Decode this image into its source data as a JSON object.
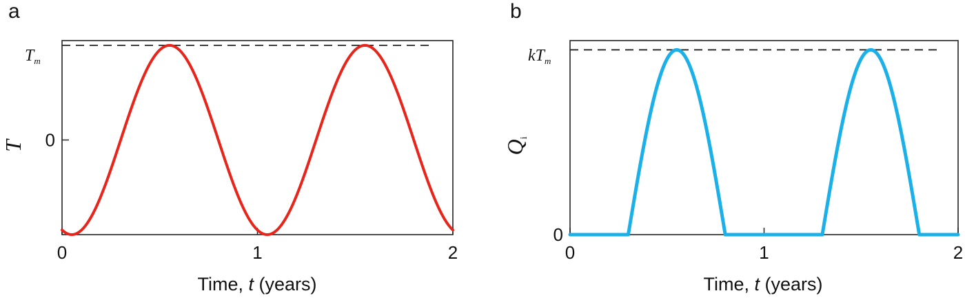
{
  "chart_data": [
    {
      "panel": "a",
      "type": "line",
      "xlabel": {
        "prefix": "Time, ",
        "var": "t",
        "suffix": " (years)"
      },
      "ylabel": {
        "main": "T",
        "sub": ""
      },
      "xlim": [
        0,
        2
      ],
      "ylim": [
        -1,
        1.05
      ],
      "x_ticks": [
        0,
        1,
        2
      ],
      "x_tick_labels": [
        "0",
        "1",
        "2"
      ],
      "y_ticks": [
        0
      ],
      "y_tick_labels": [
        "0"
      ],
      "reference_line": {
        "y": 1,
        "label_main": "T",
        "label_sub": "m",
        "style": "dashed"
      },
      "grid": false,
      "series": [
        {
          "color": "#e8251b",
          "function": "temperature = -cos(2*pi*(t - 0.05))",
          "x": [
            0,
            0.05,
            0.1,
            0.2,
            0.3,
            0.4,
            0.5,
            0.55,
            0.6,
            0.7,
            0.8,
            0.9,
            1.0,
            1.05,
            1.1,
            1.2,
            1.3,
            1.4,
            1.5,
            1.55,
            1.6,
            1.7,
            1.8,
            1.9,
            2.0
          ],
          "y": [
            -0.95,
            -1,
            -0.95,
            -0.59,
            0,
            0.59,
            0.95,
            1,
            0.95,
            0.59,
            0,
            -0.59,
            -0.95,
            -1,
            -0.95,
            -0.59,
            0,
            0.59,
            0.95,
            1,
            0.95,
            0.59,
            0,
            -0.59,
            -0.95
          ]
        }
      ]
    },
    {
      "panel": "b",
      "type": "line",
      "xlabel": {
        "prefix": "Time, ",
        "var": "t",
        "suffix": " (years)"
      },
      "ylabel": {
        "main": "Q",
        "sub": "i"
      },
      "xlim": [
        0,
        2
      ],
      "ylim": [
        0,
        1.05
      ],
      "x_ticks": [
        0,
        1,
        2
      ],
      "x_tick_labels": [
        "0",
        "1",
        "2"
      ],
      "y_ticks": [
        0
      ],
      "y_tick_labels": [
        "0"
      ],
      "reference_line": {
        "y": 1,
        "label_prefix": "k",
        "label_main": "T",
        "label_sub": "m",
        "style": "dashed"
      },
      "grid": false,
      "series": [
        {
          "color": "#1bb1e8",
          "function": "Q = max(0, sin(2*pi*(t - 0.3)))",
          "x": [
            0,
            0.3,
            0.35,
            0.4,
            0.45,
            0.5,
            0.55,
            0.6,
            0.65,
            0.7,
            0.75,
            0.8,
            1.3,
            1.35,
            1.4,
            1.45,
            1.5,
            1.55,
            1.6,
            1.65,
            1.7,
            1.75,
            1.8,
            2.0
          ],
          "y": [
            0,
            0,
            0.31,
            0.59,
            0.81,
            0.95,
            1,
            0.95,
            0.81,
            0.59,
            0.31,
            0,
            0,
            0.31,
            0.59,
            0.81,
            0.95,
            1,
            0.95,
            0.81,
            0.59,
            0.31,
            0,
            0
          ]
        }
      ]
    }
  ]
}
